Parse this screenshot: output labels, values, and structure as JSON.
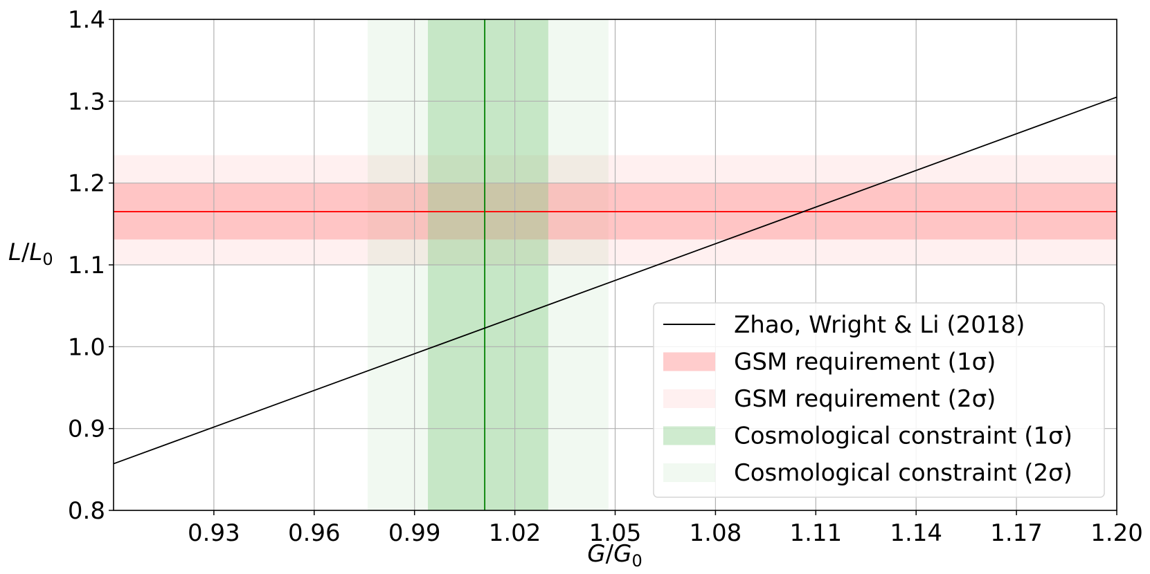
{
  "chart_data": {
    "type": "line",
    "xlabel": "G/G₀",
    "ylabel": "L/L₀",
    "xlim": [
      0.9,
      1.2
    ],
    "ylim": [
      0.8,
      1.4
    ],
    "x_ticks": [
      "0.93",
      "0.96",
      "0.99",
      "1.02",
      "1.05",
      "1.08",
      "1.11",
      "1.14",
      "1.17",
      "1.20"
    ],
    "y_ticks": [
      "0.8",
      "0.9",
      "1.0",
      "1.1",
      "1.2",
      "1.3",
      "1.4"
    ],
    "grid": true,
    "legend_position": "lower-right",
    "series": [
      {
        "name": "Zhao, Wright & Li (2018)",
        "kind": "line",
        "color": "#000000",
        "x": [
          0.9,
          1.2
        ],
        "y": [
          0.857,
          1.305
        ]
      }
    ],
    "bands": [
      {
        "name": "GSM requirement (1σ)",
        "orientation": "horizontal",
        "center": 1.165,
        "range": [
          1.131,
          1.2
        ],
        "color": "#ff9999",
        "opacity": 0.5,
        "center_line_color": "#ff0000"
      },
      {
        "name": "GSM requirement (2σ)",
        "orientation": "horizontal",
        "range": [
          1.1,
          1.234
        ],
        "color": "#ff9999",
        "opacity": 0.15
      },
      {
        "name": "Cosmological constraint (1σ)",
        "orientation": "vertical",
        "center": 1.011,
        "range": [
          0.994,
          1.03
        ],
        "color": "#88cc88",
        "opacity": 0.4,
        "center_line_color": "#008000"
      },
      {
        "name": "Cosmological constraint (2σ)",
        "orientation": "vertical",
        "range": [
          0.976,
          1.048
        ],
        "color": "#88cc88",
        "opacity": 0.12
      }
    ]
  }
}
